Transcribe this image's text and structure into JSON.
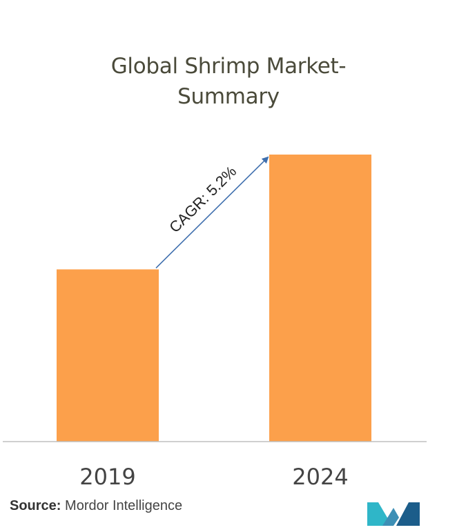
{
  "title_line1": "Global Shrimp Market-",
  "title_line2": "Summary",
  "source_label": "Source:",
  "source_value": "Mordor Intelligence",
  "colors": {
    "bar": "#FCA04B",
    "arrow": "#3F6FAE",
    "axis": "#BFBFBF",
    "text": "#444444",
    "logo_left": "#2FB6C8",
    "logo_right": "#1C5D8A"
  },
  "chart_data": {
    "type": "bar",
    "categories": [
      "2019",
      "2024"
    ],
    "values": [
      60,
      100
    ],
    "title": "Global Shrimp Market-Summary",
    "annotation": "CAGR: 5.2%",
    "xlabel": "",
    "ylabel": "",
    "ylim": [
      0,
      100
    ],
    "grid": false
  }
}
